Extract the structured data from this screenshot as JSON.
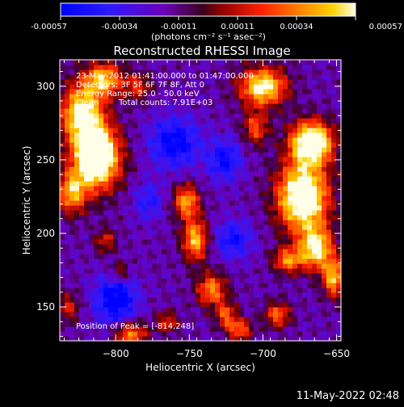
{
  "colorbar": {
    "ticks": [
      "-0.00057",
      "-0.00034",
      "-0.00011",
      "0.00011",
      "0.00034",
      "0.00057"
    ],
    "unit_label": "(photons cm⁻² s⁻¹ asec⁻²)"
  },
  "annotations": {
    "time_range": "23-May-2012 01:41:00.000 to 01:47:00.000",
    "detectors": "Detectors: 3F 5F 6F 7F 8F, Att 0",
    "energy_range": "Energy Range: 25.0 - 50.0 keV",
    "clean": "Clean",
    "total_counts": "Total counts: 7.91E+03",
    "peak_position": "Position of Peak = [-814,248]"
  },
  "footer": {
    "timestamp": "11-May-2022 02:48"
  },
  "colors": {
    "background": "#000000",
    "text": "#ffffff"
  },
  "chart_data": {
    "type": "heatmap",
    "title": "Reconstructed RHESSI Image",
    "xlabel": "Heliocentric X (arcsec)",
    "ylabel": "Heliocentric Y (arcsec)",
    "xlim": [
      -838,
      -647
    ],
    "ylim": [
      127,
      318
    ],
    "xticks": [
      -800,
      -750,
      -700,
      -650
    ],
    "xtick_labels": [
      "−800",
      "−750",
      "−700",
      "−650"
    ],
    "yticks": [
      150,
      200,
      250,
      300
    ],
    "ytick_labels": [
      "150",
      "200",
      "250",
      "300"
    ],
    "colorbar_range": [
      -0.00057,
      0.00057
    ],
    "peak": [
      -814,
      248
    ],
    "grid": false,
    "blobs": [
      {
        "x": -813,
        "y": 252,
        "sx": 11,
        "sy": 15,
        "a": 1.0
      },
      {
        "x": -823,
        "y": 282,
        "sx": 10,
        "sy": 14,
        "a": 0.72
      },
      {
        "x": -808,
        "y": 305,
        "sx": 9,
        "sy": 8,
        "a": 0.6
      },
      {
        "x": -830,
        "y": 228,
        "sx": 7,
        "sy": 10,
        "a": 0.55
      },
      {
        "x": -785,
        "y": 300,
        "sx": 6,
        "sy": 6,
        "a": 0.35
      },
      {
        "x": -700,
        "y": 300,
        "sx": 11,
        "sy": 9,
        "a": 0.75
      },
      {
        "x": -705,
        "y": 272,
        "sx": 6,
        "sy": 8,
        "a": 0.4
      },
      {
        "x": -667,
        "y": 262,
        "sx": 10,
        "sy": 10,
        "a": 0.95
      },
      {
        "x": -673,
        "y": 225,
        "sx": 12,
        "sy": 16,
        "a": 0.95
      },
      {
        "x": -664,
        "y": 190,
        "sx": 8,
        "sy": 10,
        "a": 0.7
      },
      {
        "x": -652,
        "y": 170,
        "sx": 5,
        "sy": 9,
        "a": 0.6
      },
      {
        "x": -683,
        "y": 182,
        "sx": 7,
        "sy": 6,
        "a": 0.5
      },
      {
        "x": -690,
        "y": 145,
        "sx": 6,
        "sy": 6,
        "a": 0.45
      },
      {
        "x": -752,
        "y": 222,
        "sx": 6,
        "sy": 8,
        "a": 0.55
      },
      {
        "x": -746,
        "y": 196,
        "sx": 6,
        "sy": 10,
        "a": 0.6
      },
      {
        "x": -735,
        "y": 162,
        "sx": 7,
        "sy": 8,
        "a": 0.5
      },
      {
        "x": -725,
        "y": 145,
        "sx": 5,
        "sy": 6,
        "a": 0.4
      },
      {
        "x": -716,
        "y": 135,
        "sx": 6,
        "sy": 5,
        "a": 0.45
      },
      {
        "x": -790,
        "y": 132,
        "sx": 8,
        "sy": 6,
        "a": 0.5
      },
      {
        "x": -765,
        "y": 140,
        "sx": 5,
        "sy": 5,
        "a": 0.35
      },
      {
        "x": -807,
        "y": 195,
        "sx": 5,
        "sy": 6,
        "a": 0.3
      },
      {
        "x": -797,
        "y": 174,
        "sx": 5,
        "sy": 5,
        "a": 0.28
      },
      {
        "x": -832,
        "y": 150,
        "sx": 5,
        "sy": 7,
        "a": 0.3
      }
    ],
    "dips": [
      {
        "x": -800,
        "y": 155,
        "sx": 10,
        "sy": 12,
        "a": 0.45
      },
      {
        "x": -760,
        "y": 262,
        "sx": 12,
        "sy": 12,
        "a": 0.4
      },
      {
        "x": -726,
        "y": 250,
        "sx": 8,
        "sy": 10,
        "a": 0.35
      },
      {
        "x": -720,
        "y": 196,
        "sx": 9,
        "sy": 9,
        "a": 0.32
      },
      {
        "x": -778,
        "y": 222,
        "sx": 7,
        "sy": 9,
        "a": 0.25
      }
    ]
  }
}
